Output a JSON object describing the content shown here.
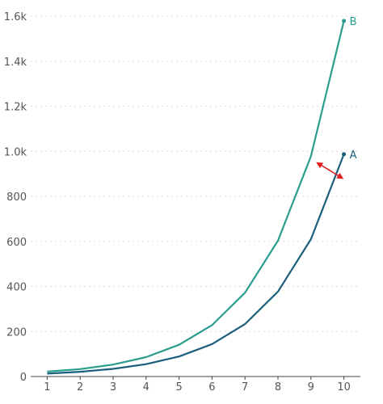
{
  "chart_data": {
    "type": "line",
    "x": [
      1,
      2,
      3,
      4,
      5,
      6,
      7,
      8,
      9,
      10
    ],
    "xlim": [
      0.5,
      10.5
    ],
    "ylim": [
      0,
      1600
    ],
    "y_ticks": [
      0,
      200,
      400,
      600,
      800,
      1000,
      1200,
      1400,
      1600
    ],
    "y_tick_labels": [
      "0",
      "200",
      "400",
      "600",
      "800",
      "1.0k",
      "1.2k",
      "1.4k",
      "1.6k"
    ],
    "x_tick_labels": [
      "1",
      "2",
      "3",
      "4",
      "5",
      "6",
      "7",
      "8",
      "9",
      "10"
    ],
    "grid": "horizontal dotted",
    "series": [
      {
        "name": "A",
        "color": "#1b5e7c",
        "values": [
          13,
          21,
          34,
          55,
          89,
          144,
          233,
          377,
          610,
          987
        ]
      },
      {
        "name": "B",
        "color": "#2a9d8f",
        "values": [
          22,
          33,
          53,
          86,
          141,
          228,
          372,
          603,
          978,
          1579
        ]
      }
    ],
    "annotation": {
      "type": "double-arrow",
      "color": "#e02020",
      "from": {
        "x": 9.2,
        "y": 948
      },
      "to": {
        "x": 9.95,
        "y": 881
      }
    }
  }
}
